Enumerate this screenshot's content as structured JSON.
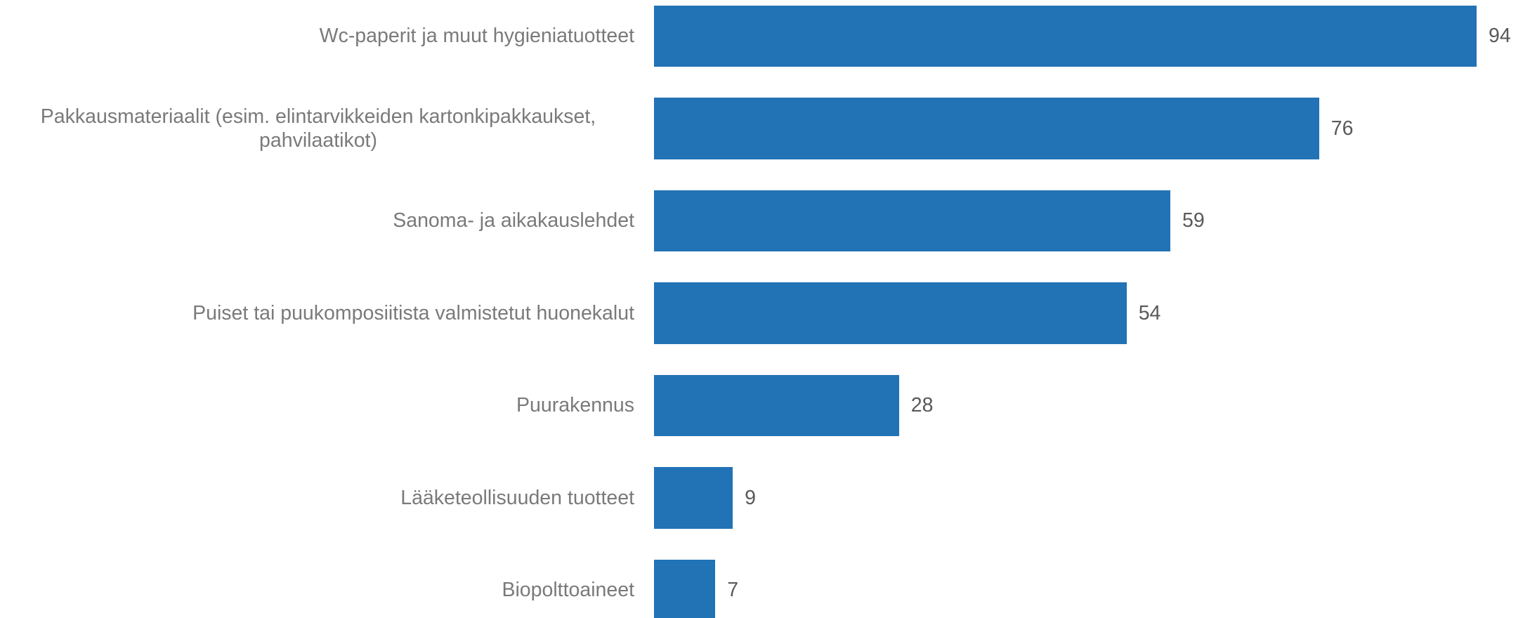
{
  "chart_data": {
    "type": "bar",
    "orientation": "horizontal",
    "categories": [
      "Wc-paperit ja muut hygieniatuotteet",
      "Pakkausmateriaalit (esim. elintarvikkeiden kartonkipakkaukset, pahvilaatikot)",
      "Sanoma- ja aikakauslehdet",
      "Puiset tai puukomposiitista valmistetut huonekalut",
      "Puurakennus",
      "Lääketeollisuuden tuotteet",
      "Biopolttoaineet"
    ],
    "values": [
      94,
      76,
      59,
      54,
      28,
      9,
      7
    ],
    "color": "#2173b6"
  }
}
